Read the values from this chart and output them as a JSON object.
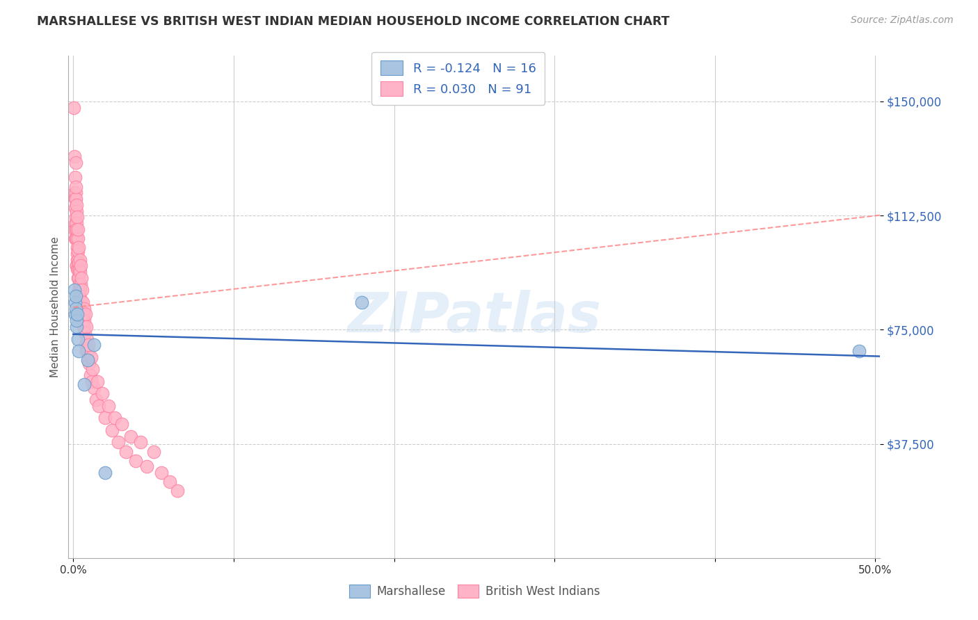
{
  "title": "MARSHALLESE VS BRITISH WEST INDIAN MEDIAN HOUSEHOLD INCOME CORRELATION CHART",
  "source": "Source: ZipAtlas.com",
  "ylabel": "Median Household Income",
  "yticks": [
    37500,
    75000,
    112500,
    150000
  ],
  "ytick_labels": [
    "$37,500",
    "$75,000",
    "$112,500",
    "$150,000"
  ],
  "ylim": [
    0,
    165000
  ],
  "xlim": [
    -0.003,
    0.503
  ],
  "watermark": "ZIPatlas",
  "blue_color": "#A8C4E0",
  "blue_edge": "#6699CC",
  "pink_color": "#FFB3C6",
  "pink_edge": "#FF80A0",
  "blue_line_color": "#3366BB",
  "pink_line_color": "#FF8080",
  "label_color": "#3366BB",
  "background_color": "#FFFFFF",
  "grid_color": "#DDDDDD",
  "title_color": "#333333",
  "source_color": "#999999",
  "legend_text_color": "#333333",
  "marshallese_x": [
    0.0008,
    0.001,
    0.0012,
    0.0015,
    0.0018,
    0.002,
    0.0022,
    0.0025,
    0.003,
    0.0035,
    0.007,
    0.009,
    0.013,
    0.02,
    0.18,
    0.49
  ],
  "marshallese_y": [
    88000,
    84000,
    80000,
    82000,
    86000,
    76000,
    78000,
    80000,
    72000,
    68000,
    57000,
    65000,
    70000,
    28000,
    84000,
    68000
  ],
  "bwi_x": [
    0.0005,
    0.0007,
    0.0008,
    0.0009,
    0.001,
    0.001,
    0.0012,
    0.0012,
    0.0013,
    0.0015,
    0.0015,
    0.0015,
    0.0016,
    0.0017,
    0.0018,
    0.0018,
    0.0019,
    0.002,
    0.002,
    0.002,
    0.0021,
    0.0022,
    0.0022,
    0.0023,
    0.0024,
    0.0025,
    0.0025,
    0.0026,
    0.0027,
    0.0028,
    0.0029,
    0.003,
    0.003,
    0.0031,
    0.0032,
    0.0033,
    0.0034,
    0.0035,
    0.0036,
    0.0037,
    0.0038,
    0.004,
    0.004,
    0.0042,
    0.0043,
    0.0045,
    0.0047,
    0.0048,
    0.005,
    0.0052,
    0.0055,
    0.0057,
    0.006,
    0.0063,
    0.0065,
    0.0068,
    0.007,
    0.0073,
    0.0075,
    0.0078,
    0.008,
    0.0083,
    0.0085,
    0.009,
    0.0093,
    0.0095,
    0.01,
    0.0105,
    0.011,
    0.0115,
    0.012,
    0.013,
    0.014,
    0.015,
    0.016,
    0.018,
    0.02,
    0.022,
    0.024,
    0.026,
    0.028,
    0.03,
    0.033,
    0.036,
    0.039,
    0.042,
    0.046,
    0.05,
    0.055,
    0.06,
    0.065
  ],
  "bwi_y": [
    148000,
    132000,
    120000,
    108000,
    125000,
    115000,
    118000,
    110000,
    105000,
    130000,
    120000,
    108000,
    118000,
    112000,
    122000,
    105000,
    114000,
    116000,
    105000,
    96000,
    110000,
    108000,
    96000,
    102000,
    98000,
    112000,
    100000,
    95000,
    105000,
    98000,
    92000,
    108000,
    95000,
    101000,
    97000,
    92000,
    88000,
    102000,
    95000,
    90000,
    86000,
    98000,
    88000,
    94000,
    88000,
    96000,
    85000,
    90000,
    92000,
    82000,
    88000,
    78000,
    84000,
    80000,
    76000,
    82000,
    78000,
    74000,
    80000,
    70000,
    76000,
    68000,
    72000,
    68000,
    65000,
    70000,
    64000,
    60000,
    66000,
    58000,
    62000,
    56000,
    52000,
    58000,
    50000,
    54000,
    46000,
    50000,
    42000,
    46000,
    38000,
    44000,
    35000,
    40000,
    32000,
    38000,
    30000,
    35000,
    28000,
    25000,
    22000
  ]
}
